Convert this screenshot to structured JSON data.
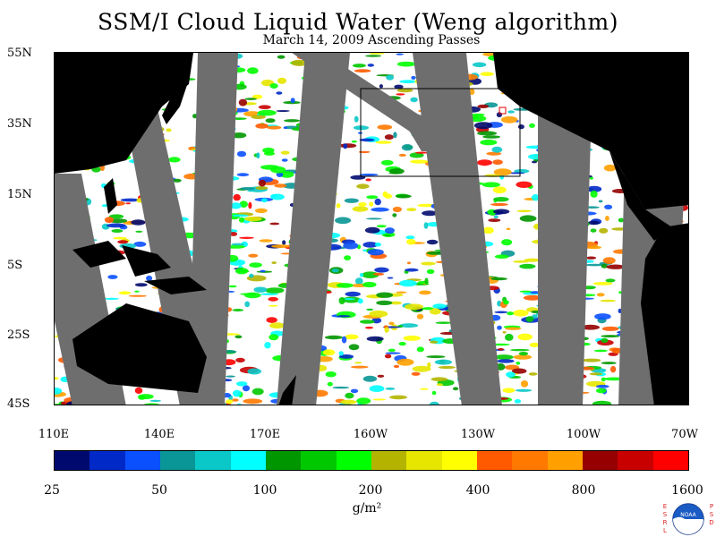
{
  "title": "SSM/I Cloud Liquid Water (Weng algorithm)",
  "subtitle": "March 14, 2009  Ascending Passes",
  "map": {
    "lat_labels": [
      "55N",
      "35N",
      "15N",
      "5S",
      "25S",
      "45S"
    ],
    "lon_labels": [
      "110E",
      "140E",
      "170E",
      "160W",
      "130W",
      "100W",
      "70W"
    ],
    "land_color": "#000000",
    "no_data_color": "#6e6e6e",
    "ocean_clear_color": "#ffffff"
  },
  "colorbar": {
    "colors": [
      "#000a6e",
      "#0029c8",
      "#0a50ff",
      "#0a9696",
      "#0ac8c8",
      "#00ffff",
      "#009600",
      "#00c800",
      "#00ff00",
      "#b4b400",
      "#e6e600",
      "#ffff00",
      "#ff5a00",
      "#ff7800",
      "#ffa000",
      "#960000",
      "#c80000",
      "#ff0000"
    ],
    "labels": [
      "25",
      "50",
      "100",
      "200",
      "400",
      "800",
      "1600"
    ],
    "units": "g/m²"
  },
  "logo": {
    "left_text": "ESRL",
    "right_text": "PSD",
    "center_text": "NOAA"
  }
}
